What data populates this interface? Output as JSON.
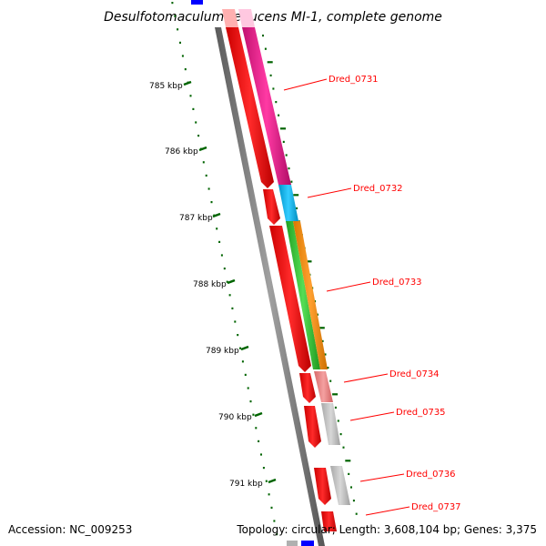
{
  "title": "Desulfotomaculum reducens MI-1, complete genome",
  "accession": "Accession: NC_009253",
  "topology": "Topology: circular; Length: 3,608,104 bp; Genes: 3,375",
  "kbp_ticks": [
    "785 kbp",
    "786 kbp",
    "787 kbp",
    "788 kbp",
    "789 kbp",
    "790 kbp",
    "791 kbp"
  ],
  "gene_labels": [
    "Dred_0731",
    "Dred_0732",
    "Dred_0733",
    "Dred_0734",
    "Dred_0735",
    "Dred_0736",
    "Dred_0737"
  ],
  "colors": {
    "backbone": "#808080",
    "cds_red": "#ff0000",
    "magenta": "#ff1493",
    "cyan": "#00bfff",
    "green": "#32cd32",
    "orange": "#ff8c00",
    "pink": "#f08080",
    "gray": "#c0c0c0",
    "blue": "#0000ff",
    "tick_green": "#006400",
    "label_red": "#ff0000"
  }
}
